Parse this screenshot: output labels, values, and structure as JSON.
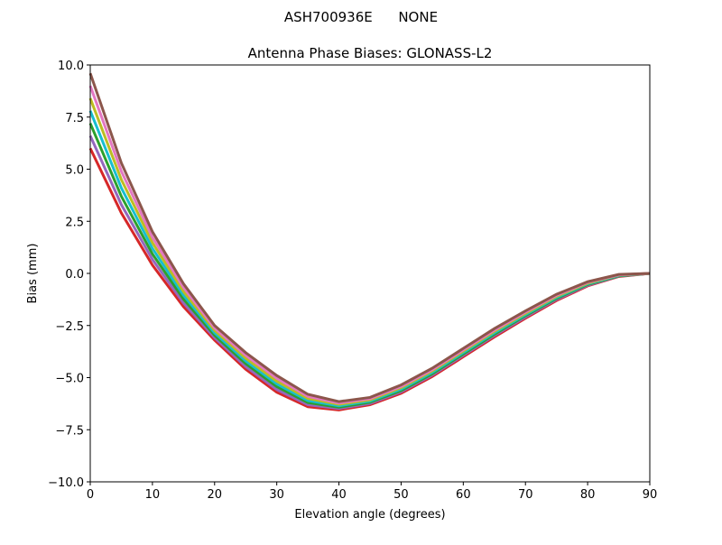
{
  "chart_data": {
    "type": "line",
    "suptitle": "ASH700936E      NONE",
    "title": "Antenna Phase Biases: GLONASS-L2",
    "xlabel": "Elevation angle (degrees)",
    "ylabel": "Bias (mm)",
    "xlim": [
      0,
      90
    ],
    "ylim": [
      -10,
      10
    ],
    "xticks": [
      0,
      10,
      20,
      30,
      40,
      50,
      60,
      70,
      80,
      90
    ],
    "yticks": [
      -10.0,
      -7.5,
      -5.0,
      -2.5,
      0.0,
      2.5,
      5.0,
      7.5,
      10.0
    ],
    "ytick_labels": [
      "−10.0",
      "−7.5",
      "−5.0",
      "−2.5",
      "0.0",
      "2.5",
      "5.0",
      "7.5",
      "10.0"
    ],
    "grid": false,
    "x": [
      0,
      5,
      10,
      15,
      20,
      25,
      30,
      35,
      40,
      45,
      50,
      55,
      60,
      65,
      70,
      75,
      80,
      85,
      90
    ],
    "series": [
      {
        "color": "#d62728",
        "values": [
          6.0,
          2.9,
          0.4,
          -1.6,
          -3.2,
          -4.6,
          -5.7,
          -6.4,
          -6.55,
          -6.3,
          -5.75,
          -4.95,
          -4.0,
          -3.05,
          -2.15,
          -1.3,
          -0.6,
          -0.15,
          0
        ]
      },
      {
        "color": "#9467bd",
        "values": [
          6.6,
          3.3,
          0.67,
          -1.42,
          -3.08,
          -4.47,
          -5.57,
          -6.3,
          -6.48,
          -6.24,
          -5.68,
          -4.88,
          -3.93,
          -2.98,
          -2.09,
          -1.25,
          -0.57,
          -0.13,
          0
        ]
      },
      {
        "color": "#2ca02c",
        "values": [
          7.2,
          3.7,
          0.93,
          -1.23,
          -2.97,
          -4.33,
          -5.43,
          -6.2,
          -6.42,
          -6.18,
          -5.62,
          -4.82,
          -3.87,
          -2.92,
          -2.03,
          -1.2,
          -0.53,
          -0.12,
          0
        ]
      },
      {
        "color": "#17becf",
        "values": [
          7.8,
          4.1,
          1.2,
          -1.05,
          -2.85,
          -4.2,
          -5.3,
          -6.1,
          -6.35,
          -6.13,
          -5.55,
          -4.75,
          -3.8,
          -2.85,
          -1.98,
          -1.15,
          -0.5,
          -0.1,
          0
        ]
      },
      {
        "color": "#bcbd22",
        "values": [
          8.4,
          4.5,
          1.47,
          -0.87,
          -2.73,
          -4.07,
          -5.17,
          -6.0,
          -6.28,
          -6.07,
          -5.48,
          -4.68,
          -3.73,
          -2.78,
          -1.92,
          -1.1,
          -0.47,
          -0.08,
          0
        ]
      },
      {
        "color": "#e377c2",
        "values": [
          9.0,
          4.9,
          1.73,
          -0.68,
          -2.62,
          -3.93,
          -5.03,
          -5.9,
          -6.22,
          -6.01,
          -5.42,
          -4.62,
          -3.67,
          -2.72,
          -1.86,
          -1.05,
          -0.43,
          -0.07,
          0
        ]
      },
      {
        "color": "#8c564b",
        "values": [
          9.6,
          5.3,
          2.0,
          -0.5,
          -2.5,
          -3.8,
          -4.9,
          -5.8,
          -6.15,
          -5.95,
          -5.35,
          -4.55,
          -3.6,
          -2.65,
          -1.8,
          -1.0,
          -0.4,
          -0.05,
          0
        ]
      }
    ]
  }
}
